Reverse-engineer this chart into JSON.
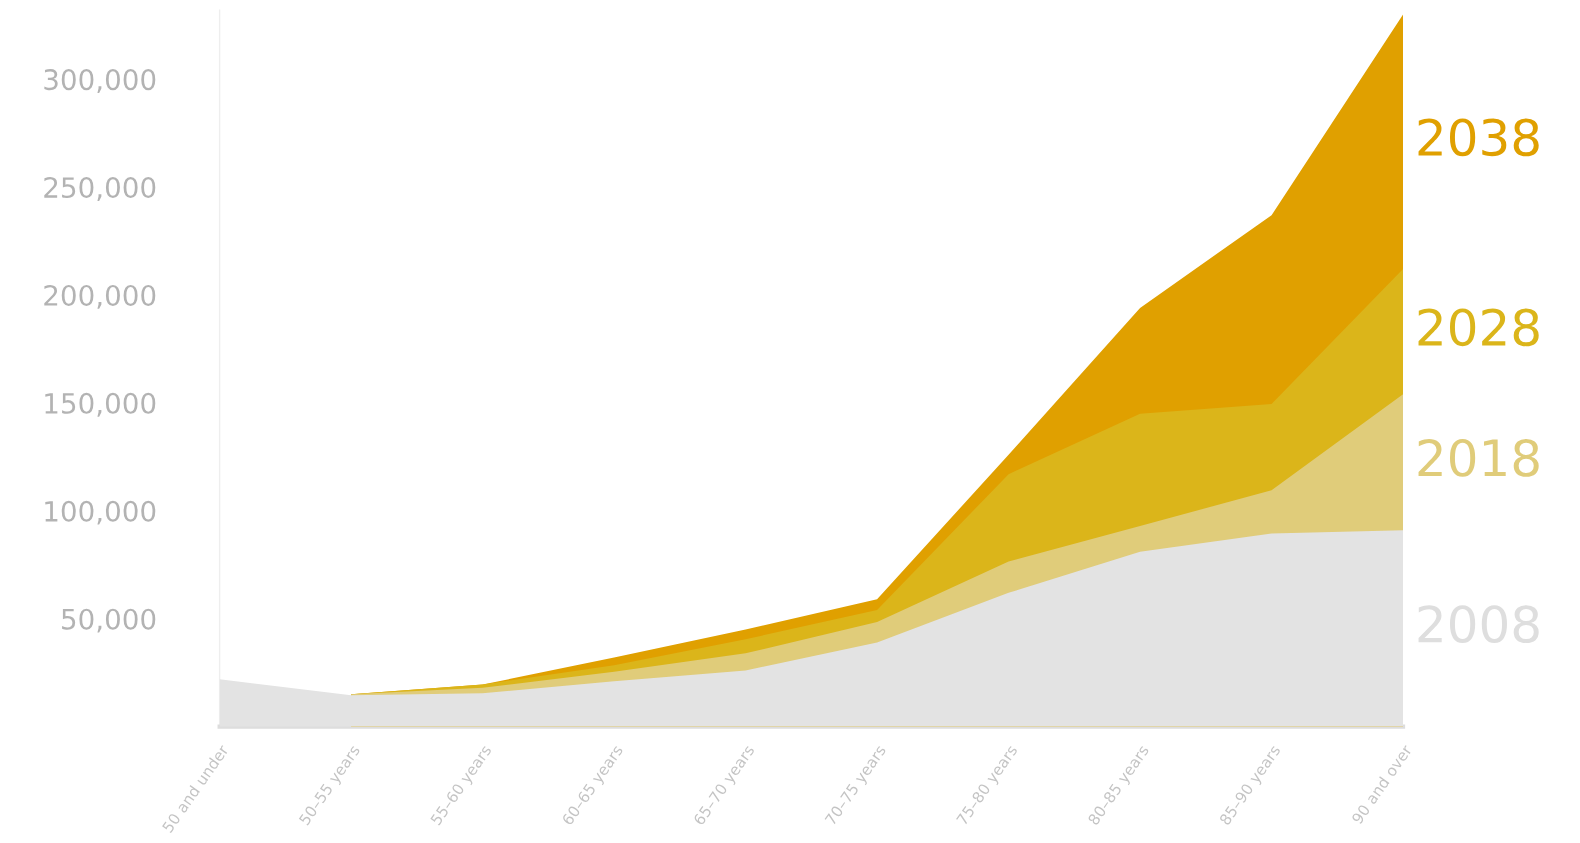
{
  "chart_data": {
    "type": "area",
    "categories": [
      "50 and under",
      "50–55 years",
      "55–60 years",
      "60–65 years",
      "65–70 years",
      "70–75 years",
      "75–80 years",
      "80–85 years",
      "85–90 years",
      "90 and over"
    ],
    "series": [
      {
        "name": "2008",
        "color": "#e3e3e3",
        "values": [
          22000,
          14500,
          15500,
          21000,
          26000,
          39000,
          62000,
          81000,
          89500,
          91000
        ]
      },
      {
        "name": "2018",
        "color": "#e0cc7a",
        "values": [
          null,
          15000,
          18000,
          25500,
          34000,
          48500,
          76500,
          93000,
          109500,
          154000
        ]
      },
      {
        "name": "2028",
        "color": "#dbb51a",
        "values": [
          null,
          15000,
          19500,
          28500,
          40500,
          54000,
          117000,
          145000,
          149500,
          212000
        ]
      },
      {
        "name": "2038",
        "color": "#e0a000",
        "values": [
          null,
          15000,
          19500,
          32000,
          45000,
          59000,
          126000,
          194000,
          237000,
          330000
        ]
      }
    ],
    "ylim": [
      0,
      332000
    ],
    "yticks": [
      {
        "value": 50000,
        "label": "50,000"
      },
      {
        "value": 100000,
        "label": "100,000"
      },
      {
        "value": 150000,
        "label": "150,000"
      },
      {
        "value": 200000,
        "label": "200,000"
      },
      {
        "value": 250000,
        "label": "250,000"
      },
      {
        "value": 300000,
        "label": "300,000"
      }
    ],
    "grid": false,
    "legend": false
  }
}
